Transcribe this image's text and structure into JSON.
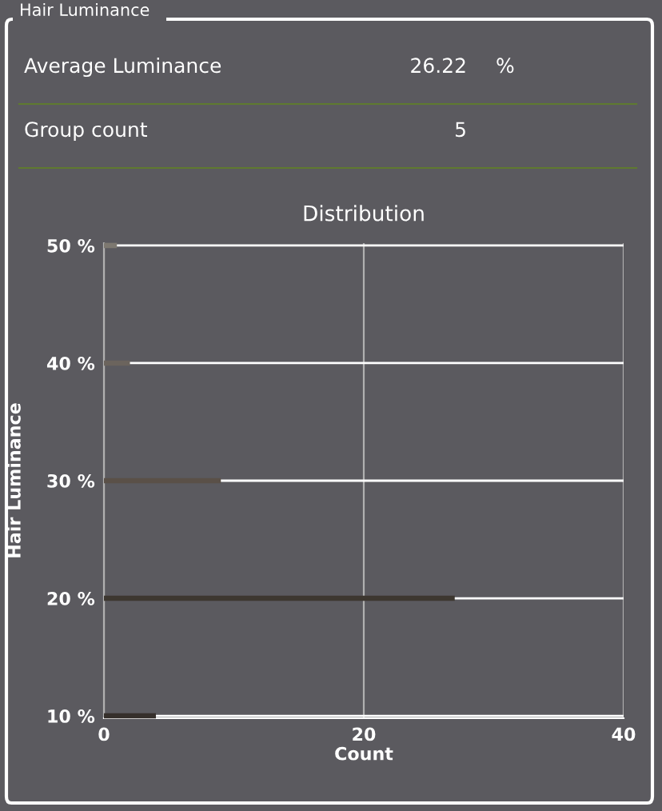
{
  "chart_data": [
    {
      "type": "other",
      "title": "Hair Luminance",
      "annotations": [
        "Average Luminance",
        "26.22",
        "%",
        "Group count",
        "5"
      ]
    },
    {
      "type": "bar",
      "orientation": "horizontal",
      "title": "Distribution",
      "xlabel": "Count",
      "ylabel": "Hair Luminance",
      "categories": [
        "50 %",
        "40 %",
        "30 %",
        "20 %",
        "10 %"
      ],
      "values": [
        1,
        2,
        9,
        27,
        4
      ],
      "colors": [
        "#7d7870",
        "#6b645d",
        "#5a5048",
        "#3d3730",
        "#352f2b"
      ],
      "xlim": [
        0,
        40
      ],
      "xticks": [
        0,
        20,
        40
      ],
      "grid": true
    }
  ]
}
